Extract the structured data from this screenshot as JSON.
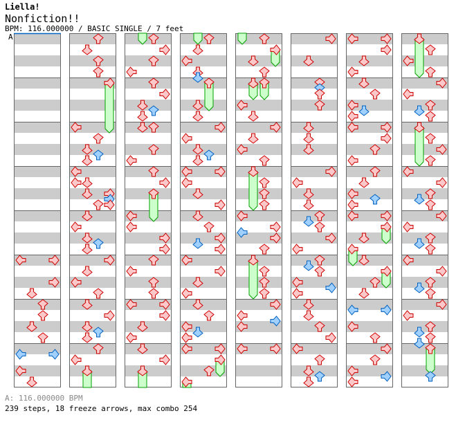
{
  "header": {
    "artist": "Liella!",
    "title": "Nonfiction!!",
    "info": "BPM: 116.000000 / BASIC SINGLE / 7 feet"
  },
  "bpm_marker": {
    "label": "A"
  },
  "footer": {
    "bpm": "A: 116.000000 BPM",
    "stats": "239 steps, 18 freeze arrows, max combo 254"
  },
  "colors": {
    "stripe": "#cccccc",
    "border": "#666666",
    "bpm_line": "#0066cc",
    "quarter_fill": "#ffc8c8",
    "quarter_stroke": "#cc0000",
    "eighth_fill": "#a0d0ff",
    "eighth_stroke": "#0060c0",
    "freeze_fill": "#ccffcc",
    "freeze_stroke": "#00a000"
  },
  "chart": {
    "columns": 8,
    "beats_per_column": 32,
    "beats_per_measure": 4,
    "lanes": [
      "L",
      "D",
      "U",
      "R"
    ],
    "notes": [
      [
        20,
        "L"
      ],
      [
        20,
        "R"
      ],
      [
        22,
        "R"
      ],
      [
        23,
        "D"
      ],
      [
        24,
        "U"
      ],
      [
        25,
        "U"
      ],
      [
        26,
        "D"
      ],
      [
        27,
        "U"
      ],
      [
        28.5,
        "L"
      ],
      [
        28.5,
        "R"
      ],
      [
        30,
        "L"
      ],
      [
        31,
        "D"
      ],
      [
        32,
        "U"
      ],
      [
        33,
        "D"
      ],
      [
        34,
        "U"
      ],
      [
        35,
        "U"
      ],
      [
        36,
        "R"
      ],
      [
        40,
        "L"
      ],
      [
        41,
        "U"
      ],
      [
        42,
        "D"
      ],
      [
        42.5,
        "U"
      ],
      [
        43,
        "D"
      ],
      [
        44,
        "L"
      ],
      [
        45,
        "L"
      ],
      [
        45,
        "D"
      ],
      [
        46,
        "D"
      ],
      [
        46,
        "R"
      ],
      [
        46.5,
        "R"
      ],
      [
        47,
        "U"
      ],
      [
        47,
        "R"
      ],
      [
        48,
        "D"
      ],
      [
        49,
        "L"
      ],
      [
        50,
        "D"
      ],
      [
        50.5,
        "U"
      ],
      [
        51,
        "D"
      ],
      [
        52,
        "R"
      ],
      [
        53,
        "D"
      ],
      [
        54,
        "L"
      ],
      [
        55,
        "U"
      ],
      [
        56,
        "D"
      ],
      [
        57,
        "R"
      ],
      [
        58,
        "D"
      ],
      [
        58.5,
        "U"
      ],
      [
        59,
        "D"
      ],
      [
        60,
        "U"
      ],
      [
        61,
        "L"
      ],
      [
        62,
        "D"
      ],
      [
        64,
        "U"
      ],
      [
        65,
        "R"
      ],
      [
        66,
        "U"
      ],
      [
        67,
        "L"
      ],
      [
        68,
        "U"
      ],
      [
        69,
        "R"
      ],
      [
        70,
        "D"
      ],
      [
        70.5,
        "U"
      ],
      [
        71,
        "D"
      ],
      [
        72,
        "D"
      ],
      [
        72,
        "U"
      ],
      [
        74,
        "U"
      ],
      [
        75,
        "L"
      ],
      [
        76,
        "U"
      ],
      [
        77,
        "R"
      ],
      [
        78,
        "U"
      ],
      [
        80,
        "L"
      ],
      [
        81,
        "L"
      ],
      [
        82,
        "R"
      ],
      [
        83,
        "R"
      ],
      [
        84,
        "U"
      ],
      [
        85,
        "L"
      ],
      [
        86,
        "U"
      ],
      [
        87,
        "U"
      ],
      [
        88,
        "L"
      ],
      [
        88,
        "R"
      ],
      [
        89,
        "R"
      ],
      [
        90,
        "D"
      ],
      [
        91,
        "L"
      ],
      [
        92,
        "D"
      ],
      [
        93,
        "R"
      ],
      [
        94,
        "D"
      ],
      [
        96,
        "U"
      ],
      [
        97,
        "D"
      ],
      [
        98,
        "L"
      ],
      [
        99,
        "D"
      ],
      [
        99.5,
        "D"
      ],
      [
        100,
        "U"
      ],
      [
        102,
        "D"
      ],
      [
        103,
        "D"
      ],
      [
        104,
        "R"
      ],
      [
        105,
        "L"
      ],
      [
        106,
        "D"
      ],
      [
        106.5,
        "U"
      ],
      [
        107,
        "D"
      ],
      [
        108,
        "L"
      ],
      [
        108,
        "R"
      ],
      [
        109,
        "L"
      ],
      [
        110,
        "D"
      ],
      [
        111,
        "R"
      ],
      [
        112,
        "D"
      ],
      [
        113,
        "U"
      ],
      [
        114,
        "R"
      ],
      [
        114.5,
        "D"
      ],
      [
        115,
        "R"
      ],
      [
        116,
        "L"
      ],
      [
        117,
        "R"
      ],
      [
        118,
        "D"
      ],
      [
        119,
        "L"
      ],
      [
        120,
        "D"
      ],
      [
        121,
        "U"
      ],
      [
        122,
        "L"
      ],
      [
        122.5,
        "D"
      ],
      [
        123,
        "L"
      ],
      [
        124,
        "L"
      ],
      [
        124,
        "R"
      ],
      [
        125,
        "R"
      ],
      [
        126,
        "U"
      ],
      [
        127,
        "L"
      ],
      [
        128,
        "U"
      ],
      [
        129,
        "R"
      ],
      [
        130,
        "D"
      ],
      [
        131,
        "U"
      ],
      [
        132,
        "D"
      ],
      [
        132,
        "U"
      ],
      [
        134,
        "L"
      ],
      [
        135,
        "D"
      ],
      [
        136,
        "R"
      ],
      [
        137,
        "D"
      ],
      [
        138,
        "L"
      ],
      [
        139,
        "U"
      ],
      [
        140,
        "D"
      ],
      [
        141,
        "U"
      ],
      [
        142,
        "U"
      ],
      [
        143,
        "U"
      ],
      [
        144,
        "L"
      ],
      [
        145,
        "R"
      ],
      [
        145.5,
        "L"
      ],
      [
        146,
        "R"
      ],
      [
        147,
        "U"
      ],
      [
        148,
        "D"
      ],
      [
        149,
        "U"
      ],
      [
        150,
        "U"
      ],
      [
        151,
        "U"
      ],
      [
        152,
        "R"
      ],
      [
        153,
        "L"
      ],
      [
        153.5,
        "R"
      ],
      [
        154,
        "L"
      ],
      [
        156,
        "L"
      ],
      [
        156,
        "R"
      ],
      [
        160,
        "R"
      ],
      [
        162,
        "D"
      ],
      [
        164,
        "U"
      ],
      [
        164.5,
        "U"
      ],
      [
        165,
        "U"
      ],
      [
        166,
        "U"
      ],
      [
        168,
        "D"
      ],
      [
        169,
        "D"
      ],
      [
        170,
        "D"
      ],
      [
        172,
        "R"
      ],
      [
        173,
        "L"
      ],
      [
        174,
        "D"
      ],
      [
        175,
        "D"
      ],
      [
        176,
        "U"
      ],
      [
        176.5,
        "D"
      ],
      [
        177,
        "U"
      ],
      [
        178,
        "R"
      ],
      [
        179,
        "L"
      ],
      [
        180,
        "U"
      ],
      [
        180.5,
        "D"
      ],
      [
        181,
        "U"
      ],
      [
        182,
        "L"
      ],
      [
        182.5,
        "R"
      ],
      [
        183,
        "L"
      ],
      [
        184,
        "D"
      ],
      [
        185,
        "D"
      ],
      [
        186,
        "U"
      ],
      [
        187,
        "R"
      ],
      [
        188,
        "L"
      ],
      [
        189,
        "U"
      ],
      [
        190,
        "D"
      ],
      [
        190.5,
        "U"
      ],
      [
        191,
        "D"
      ],
      [
        192,
        "L"
      ],
      [
        192,
        "R"
      ],
      [
        193,
        "R"
      ],
      [
        194,
        "D"
      ],
      [
        195,
        "L"
      ],
      [
        196,
        "D"
      ],
      [
        197,
        "U"
      ],
      [
        198,
        "L"
      ],
      [
        198.5,
        "D"
      ],
      [
        199,
        "L"
      ],
      [
        200,
        "L"
      ],
      [
        200,
        "R"
      ],
      [
        201,
        "R"
      ],
      [
        202,
        "U"
      ],
      [
        203,
        "L"
      ],
      [
        204,
        "U"
      ],
      [
        205,
        "D"
      ],
      [
        206,
        "L"
      ],
      [
        206.5,
        "U"
      ],
      [
        207,
        "L"
      ],
      [
        208,
        "L"
      ],
      [
        208,
        "R"
      ],
      [
        209,
        "R"
      ],
      [
        210,
        "D"
      ],
      [
        211,
        "L"
      ],
      [
        212,
        "D"
      ],
      [
        213,
        "R"
      ],
      [
        214,
        "U"
      ],
      [
        215,
        "D"
      ],
      [
        216.5,
        "L"
      ],
      [
        216.5,
        "R"
      ],
      [
        218,
        "L"
      ],
      [
        219,
        "U"
      ],
      [
        220,
        "R"
      ],
      [
        221,
        "U"
      ],
      [
        222,
        "L"
      ],
      [
        222.5,
        "R"
      ],
      [
        223,
        "L"
      ],
      [
        224,
        "D"
      ],
      [
        225,
        "U"
      ],
      [
        226,
        "L"
      ],
      [
        227,
        "U"
      ],
      [
        228,
        "R"
      ],
      [
        229,
        "L"
      ],
      [
        230,
        "U"
      ],
      [
        230.5,
        "D"
      ],
      [
        231,
        "U"
      ],
      [
        232,
        "D"
      ],
      [
        233,
        "U"
      ],
      [
        234,
        "R"
      ],
      [
        235,
        "U"
      ],
      [
        236,
        "L"
      ],
      [
        237,
        "R"
      ],
      [
        238,
        "U"
      ],
      [
        238.5,
        "D"
      ],
      [
        239,
        "U"
      ],
      [
        240,
        "R"
      ],
      [
        241,
        "L"
      ],
      [
        242,
        "U"
      ],
      [
        242.5,
        "D"
      ],
      [
        243,
        "U"
      ],
      [
        244,
        "L"
      ],
      [
        245,
        "R"
      ],
      [
        246,
        "U"
      ],
      [
        246.5,
        "D"
      ],
      [
        247,
        "U"
      ],
      [
        248,
        "R"
      ],
      [
        249,
        "L"
      ],
      [
        250,
        "U"
      ],
      [
        250.5,
        "D"
      ],
      [
        251,
        "U"
      ],
      [
        251.5,
        "D"
      ],
      [
        252,
        "U"
      ],
      [
        254.5,
        "U"
      ]
    ],
    "freezes": [
      [
        36,
        40,
        "R"
      ],
      [
        62,
        64,
        "D"
      ],
      [
        78,
        80,
        "U"
      ],
      [
        94,
        96,
        "D"
      ],
      [
        100,
        102,
        "U"
      ],
      [
        125,
        126,
        "R"
      ],
      [
        127,
        128,
        "L"
      ],
      [
        129,
        130,
        "R"
      ],
      [
        132,
        133,
        "D"
      ],
      [
        132,
        133,
        "U"
      ],
      [
        140,
        143,
        "D"
      ],
      [
        148,
        151,
        "D"
      ],
      [
        209,
        210,
        "R"
      ],
      [
        211,
        212,
        "L"
      ],
      [
        213,
        214,
        "R"
      ],
      [
        224,
        227,
        "D"
      ],
      [
        232,
        235,
        "D"
      ],
      [
        252,
        253.75,
        "U"
      ]
    ]
  }
}
